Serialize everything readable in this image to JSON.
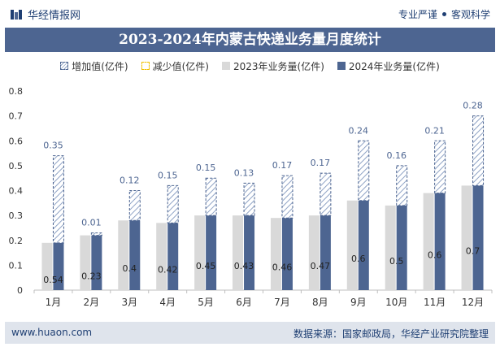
{
  "header": {
    "brand": "华经情报网",
    "tagline_left": "专业严谨",
    "tagline_right": "客观科学",
    "brand_color": "#1f3f73"
  },
  "title": "2023-2024年内蒙古快递业务量月度统计",
  "legend": [
    "增加值(亿件)",
    "减少值(亿件)",
    "2023年业务量(亿件)",
    "2024年业务量(亿件)"
  ],
  "footer": {
    "website": "www.huaon.com",
    "source": "数据来源：国家邮政局，华经产业研究院整理"
  },
  "chart_data": {
    "type": "bar",
    "title": "2023-2024年内蒙古快递业务量月度统计",
    "categories": [
      "1月",
      "2月",
      "3月",
      "4月",
      "5月",
      "6月",
      "7月",
      "8月",
      "9月",
      "10月",
      "11月",
      "12月"
    ],
    "series": [
      {
        "name": "2023年业务量(亿件)",
        "values": [
          0.19,
          0.22,
          0.28,
          0.27,
          0.3,
          0.3,
          0.29,
          0.3,
          0.36,
          0.34,
          0.39,
          0.42
        ]
      },
      {
        "name": "2024年业务量(亿件)",
        "values": [
          0.54,
          0.23,
          0.4,
          0.42,
          0.45,
          0.43,
          0.46,
          0.47,
          0.6,
          0.5,
          0.6,
          0.7
        ]
      },
      {
        "name": "增加值(亿件)",
        "values": [
          0.35,
          0.01,
          0.12,
          0.15,
          0.15,
          0.13,
          0.17,
          0.17,
          0.24,
          0.16,
          0.21,
          0.28
        ]
      },
      {
        "name": "减少值(亿件)",
        "values": [
          0,
          0,
          0,
          0,
          0,
          0,
          0,
          0,
          0,
          0,
          0,
          0
        ]
      }
    ],
    "ylim": [
      0,
      0.8
    ],
    "yticks": [
      "0",
      "0.1",
      "0.2",
      "0.3",
      "0.4",
      "0.5",
      "0.6",
      "0.7",
      "0.8"
    ],
    "colors": {
      "y2023": "#d9d9d9",
      "y2024": "#4d6591",
      "increase": "#8fa3c5",
      "increase_label": "#4d6591"
    },
    "legend_position": "top",
    "grid": false
  }
}
